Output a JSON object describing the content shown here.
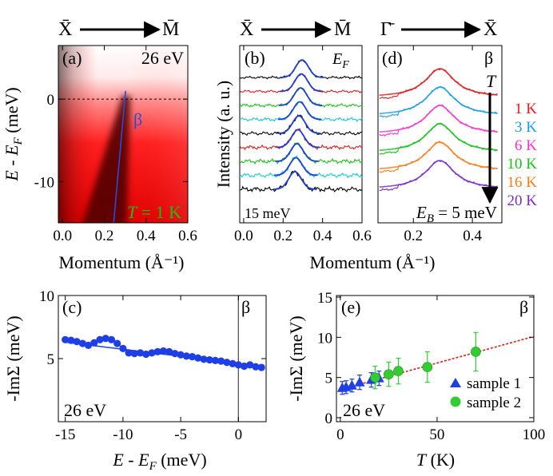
{
  "colors": {
    "axis": "#000000",
    "map_red": "#e60000",
    "fit_blue": "#1f3fd8",
    "dispersion_blue": "#2a4bd8",
    "green_label": "#16c016",
    "mdc_palette": [
      "#000000",
      "#e31a1c",
      "#19c019",
      "#17c8d8"
    ],
    "edc_colors": [
      "#e31a1c",
      "#1a9ce6",
      "#ff33cc",
      "#19c019",
      "#ff7a1a",
      "#7a2bc8"
    ],
    "fermi_dashed": "#000000",
    "fit_line_e": "#e31a1c",
    "marker_c": "#1e3fe6",
    "sample1": "#1e3fe6",
    "sample2": "#33cc33"
  },
  "chart_data": [
    {
      "panel": "a",
      "type": "heatmap",
      "direction": {
        "from": "X̄",
        "to": "M̄"
      },
      "label": "(a)",
      "photon_energy": "26 eV",
      "band_label": "β",
      "temperature_label": "T = 1 K",
      "temperature_label_parts": {
        "italic": "T",
        "rest": " = 1 K"
      },
      "xlabel": "Momentum (Å⁻¹)",
      "ylabel": "E - E_F (meV)",
      "ylabel_parts": {
        "a": "E",
        "b": " - ",
        "c": "E",
        "sub": "F",
        "unit": " (meV)"
      },
      "xlim": [
        -0.02,
        0.6
      ],
      "ylim": [
        -15,
        6.5
      ],
      "xticks": [
        0.0,
        0.2,
        0.4,
        0.6
      ],
      "xtick_labels": [
        "0.0",
        "0.2",
        "0.4",
        "0.6"
      ],
      "yticks": [
        0,
        -10
      ],
      "ytick_labels": [
        "0",
        "-10"
      ],
      "fermi_level": 0,
      "dispersion": {
        "x": [
          0.245,
          0.302
        ],
        "y": [
          -15,
          1
        ]
      }
    },
    {
      "panel": "b",
      "type": "line",
      "direction": {
        "from": "X̄",
        "to": "M̄"
      },
      "label": "(b)",
      "top_label": "E_F",
      "top_label_parts": {
        "main": "E",
        "sub": "F"
      },
      "bottom_label": "15 meV",
      "ylabel": "Intensity (a. u.)",
      "xlim": [
        -0.02,
        0.6
      ],
      "xticks": [
        0.0,
        0.2,
        0.4,
        0.6
      ],
      "xtick_labels": [
        "0.0",
        "0.2",
        "0.4",
        "0.6"
      ],
      "curve_count": 9,
      "peak_positions": [
        0.296,
        0.292,
        0.288,
        0.284,
        0.28,
        0.275,
        0.27,
        0.265,
        0.26
      ]
    },
    {
      "panel": "d",
      "type": "line",
      "direction": {
        "from": "Γ̄",
        "to": "X̄"
      },
      "label": "(d)",
      "band_label": "β",
      "arrow_label": "T",
      "energy_label": "E_B = 5 meV",
      "energy_label_parts": {
        "main": "E",
        "sub": "B",
        "rest": " = 5 meV"
      },
      "xlim": [
        0.08,
        0.5
      ],
      "xticks": [
        0.2,
        0.4
      ],
      "xtick_labels": [
        "0.2",
        "0.4"
      ],
      "series": [
        {
          "name": "1 K",
          "peak": 0.29
        },
        {
          "name": "3 K",
          "peak": 0.29
        },
        {
          "name": "6 K",
          "peak": 0.29
        },
        {
          "name": "10 K",
          "peak": 0.29
        },
        {
          "name": "16 K",
          "peak": 0.29
        },
        {
          "name": "20 K",
          "peak": 0.29
        }
      ]
    },
    {
      "panel": "bd-shared",
      "type": "axis",
      "xlabel": "Momentum (Å⁻¹)"
    },
    {
      "panel": "c",
      "type": "line",
      "label": "(c)",
      "band_label": "β",
      "photon_energy": "26 eV",
      "xlabel": "E - E_F (meV)",
      "xlabel_parts": {
        "a": "E",
        "b": " - ",
        "c": "E",
        "sub": "F",
        "unit": " (meV)"
      },
      "ylabel": "-ImΣ (meV)",
      "xlim": [
        -15.6,
        2.4
      ],
      "ylim": [
        0,
        10
      ],
      "xticks": [
        -15,
        -10,
        -5,
        0
      ],
      "xtick_labels": [
        "-15",
        "-10",
        "-5",
        "0"
      ],
      "yticks": [
        5,
        10
      ],
      "ytick_labels": [
        "5",
        "10"
      ],
      "x": [
        -15,
        -14.5,
        -14,
        -13.5,
        -13,
        -12.5,
        -12,
        -11.5,
        -11,
        -10.5,
        -10,
        -9.5,
        -9,
        -8.5,
        -8,
        -7.5,
        -7,
        -6.5,
        -6,
        -5.5,
        -5,
        -4.5,
        -4,
        -3.5,
        -3,
        -2.5,
        -2,
        -1.5,
        -1,
        -0.5,
        0,
        0.5,
        1,
        1.5,
        2
      ],
      "y": [
        6.5,
        6.45,
        6.35,
        6.2,
        6.05,
        6.25,
        6.5,
        6.6,
        6.5,
        6.2,
        5.8,
        5.45,
        5.4,
        5.45,
        5.35,
        5.45,
        5.55,
        5.6,
        5.55,
        5.4,
        5.3,
        5.2,
        5.15,
        5.05,
        4.95,
        4.9,
        4.85,
        4.8,
        4.7,
        4.6,
        4.5,
        4.4,
        4.5,
        4.35,
        4.3
      ],
      "fit": {
        "x": [
          -15,
          2
        ],
        "y": [
          6.3,
          4.4
        ]
      },
      "fermi_level": 0
    },
    {
      "panel": "e",
      "type": "scatter",
      "label": "(e)",
      "band_label": "β",
      "photon_energy": "26 eV",
      "xlabel": "T (K)",
      "xlabel_parts": {
        "italic": "T",
        "rest": " (K)"
      },
      "ylabel": "-ImΣ (meV)",
      "xlim": [
        -2,
        100
      ],
      "ylim": [
        -0.5,
        15.2
      ],
      "xticks": [
        0,
        50,
        100
      ],
      "xtick_labels": [
        "0",
        "50",
        "100"
      ],
      "yticks": [
        0,
        5,
        10,
        15
      ],
      "ytick_labels": [
        "0",
        "5",
        "10",
        "15"
      ],
      "series": [
        {
          "name": "sample 1",
          "marker": "triangle",
          "x": [
            1,
            3,
            6,
            10,
            16,
            20
          ],
          "y": [
            3.7,
            3.8,
            4.0,
            4.4,
            4.7,
            4.9
          ],
          "err": [
            0.8,
            0.8,
            0.8,
            0.9,
            0.9,
            0.9
          ]
        },
        {
          "name": "sample 2",
          "marker": "circle",
          "x": [
            18,
            25,
            30,
            45,
            70
          ],
          "y": [
            5.0,
            5.4,
            5.8,
            6.3,
            8.2
          ],
          "err": [
            1.4,
            1.5,
            1.6,
            1.9,
            2.4
          ]
        }
      ],
      "fit": {
        "x": [
          0,
          100
        ],
        "y": [
          3.5,
          10.1
        ]
      }
    }
  ]
}
